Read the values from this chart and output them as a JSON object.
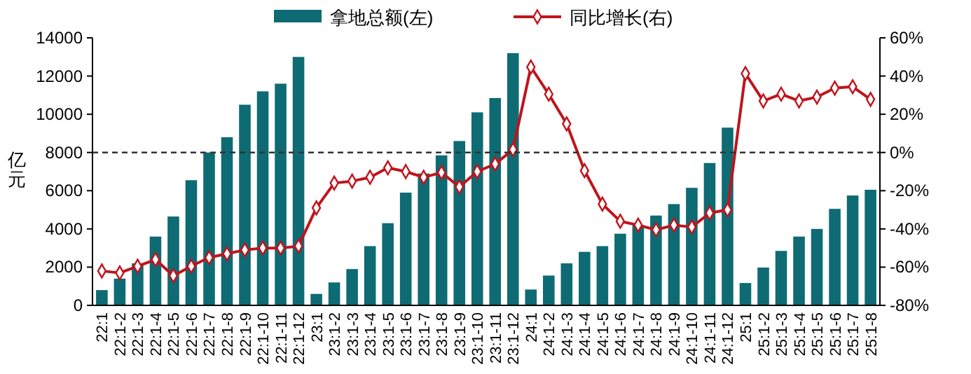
{
  "chart_data": {
    "type": "bar",
    "ylabel": "亿元",
    "categories": [
      "22:1",
      "22:1-2",
      "22:1-3",
      "22:1-4",
      "22:1-5",
      "22:1-6",
      "22:1-7",
      "22:1-8",
      "22:1-9",
      "22:1-10",
      "22:1-11",
      "22:1-12",
      "23:1",
      "23:1-2",
      "23:1-3",
      "23:1-4",
      "23:1-5",
      "23:1-6",
      "23:1-7",
      "23:1-8",
      "23:1-9",
      "23:1-10",
      "23:1-11",
      "23:1-12",
      "24:1",
      "24:1-2",
      "24:1-3",
      "24:1-4",
      "24:1-5",
      "24:1-6",
      "24:1-7",
      "24:1-8",
      "24:1-9",
      "24:1-10",
      "24:1-11",
      "24:1-12",
      "25:1",
      "25:1-2",
      "25:1-3",
      "25:1-4",
      "25:1-5",
      "25:1-6",
      "25:1-7",
      "25:1-8"
    ],
    "series": [
      {
        "name": "拿地总额(左)",
        "color": "#0e6b74",
        "values": [
          800,
          1400,
          2200,
          3600,
          4650,
          6550,
          8000,
          8800,
          10500,
          11200,
          11600,
          13000,
          600,
          1200,
          1900,
          3100,
          4300,
          5900,
          6900,
          7850,
          8600,
          10100,
          10850,
          13200,
          830,
          1560,
          2200,
          2800,
          3100,
          3750,
          4200,
          4700,
          5300,
          6150,
          7450,
          9300,
          1170,
          1980,
          2850,
          3600,
          4000,
          5050,
          5750,
          6050
        ]
      },
      {
        "name": "同比增长(右)",
        "type": "line",
        "axis": "y2",
        "color": "#c0141c",
        "marker": "diamond",
        "values": [
          -62,
          -63,
          -59.5,
          -56,
          -64.5,
          -59.5,
          -55,
          -53,
          -51,
          -50,
          -50,
          -49,
          -29,
          -16,
          -15,
          -13,
          -8,
          -10,
          -13,
          -10.5,
          -18,
          -10,
          -6,
          1.5,
          44.7,
          30.5,
          15,
          -9.5,
          -27,
          -36,
          -38,
          -40.5,
          -38,
          -39,
          -31.7,
          -30,
          41.3,
          27,
          30.5,
          27,
          29,
          33.7,
          34.4,
          27.8
        ]
      }
    ],
    "ylim": [
      0,
      14000
    ],
    "yticks": [
      0,
      2000,
      4000,
      6000,
      8000,
      10000,
      12000,
      14000
    ],
    "y2lim": [
      -80,
      60
    ],
    "y2ticks": [
      {
        "value": -80,
        "label": "-80%"
      },
      {
        "value": -60,
        "label": "-60%"
      },
      {
        "value": -40,
        "label": "-40%"
      },
      {
        "value": -20,
        "label": "-20%"
      },
      {
        "value": 0,
        "label": "0%"
      },
      {
        "value": 20,
        "label": "20%"
      },
      {
        "value": 40,
        "label": "40%"
      },
      {
        "value": 60,
        "label": "60%"
      }
    ],
    "ref_lines": [
      {
        "axis": "y2",
        "value": 0,
        "line_style": "dashed",
        "color": "#333333"
      }
    ],
    "legend": "top",
    "grid": false
  }
}
